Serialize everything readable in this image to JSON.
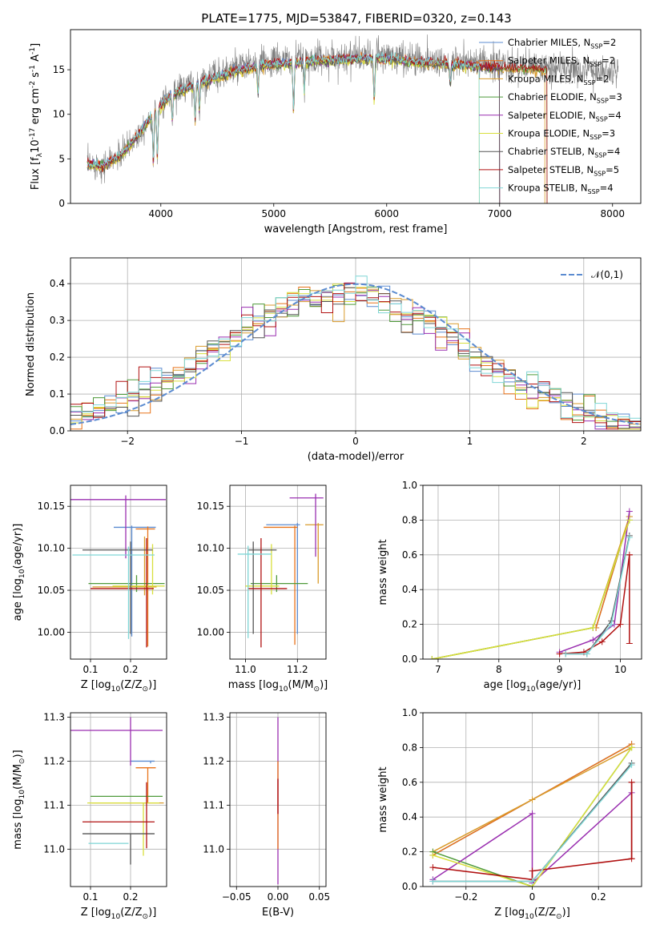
{
  "figure_title": "PLATE=1775, MJD=53847, FIBERID=0320, z=0.143",
  "series_names": [
    "Chabrier MILES, N$_{SSP}$=2",
    "Salpeter MILES, N$_{SSP}$=2",
    "Kroupa MILES, N$_{SSP}$=2",
    "Chabrier ELODIE, N$_{SSP}$=3",
    "Salpeter ELODIE, N$_{SSP}$=4",
    "Kroupa ELODIE, N$_{SSP}$=3",
    "Chabrier STELIB, N$_{SSP}$=4",
    "Salpeter STELIB, N$_{SSP}$=5",
    "Kroupa STELIB, N$_{SSP}$=4"
  ],
  "series_colors": [
    "#5b8bd0",
    "#e8731a",
    "#d99b2b",
    "#4f9a3a",
    "#9a2fb0",
    "#d8df3c",
    "#555555",
    "#b01010",
    "#7fd6d6"
  ],
  "chart_data": [
    {
      "id": "spectrum",
      "type": "line",
      "title": "",
      "xlabel": "wavelength [Angstrom, rest frame]",
      "ylabel": "Flux [f$_\\lambda$10$^{-17}$ erg cm$^{-2}$ s$^{-1}$ A$^{-1}$]",
      "xlim": [
        3200,
        8250
      ],
      "ylim": [
        0,
        19.5
      ],
      "xticks": [
        4000,
        5000,
        6000,
        7000,
        8000
      ],
      "yticks": [
        0,
        5,
        10,
        15
      ],
      "grid": false,
      "legend": "right",
      "data_series": {
        "name": "data",
        "color": "#808080"
      },
      "continuum_knots": {
        "x": [
          3350,
          3500,
          3650,
          3800,
          3950,
          4100,
          4300,
          4500,
          4700,
          4900,
          5100,
          5300,
          5500,
          5700,
          5900,
          6100,
          6300,
          6500,
          6700,
          6900,
          7100,
          7300,
          7500,
          7700,
          7900,
          8050
        ],
        "y": [
          4.5,
          4.3,
          5.5,
          7.8,
          10.5,
          12.5,
          13.5,
          14.5,
          15.2,
          15.8,
          16.0,
          16.2,
          16.4,
          16.5,
          16.6,
          16.4,
          16.1,
          16.0,
          15.8,
          15.6,
          15.4,
          15.3,
          15.1,
          15.0,
          14.8,
          14.6
        ]
      },
      "model_end_wavelength": [
        7000,
        7000,
        7400,
        7420,
        7000,
        6820,
        7000,
        7420,
        6820
      ]
    },
    {
      "id": "residual_hist",
      "type": "step",
      "xlabel": "(data-model)/error",
      "ylabel": "Normed distribution",
      "xlim": [
        -2.5,
        2.5
      ],
      "ylim": [
        0,
        0.47
      ],
      "xticks": [
        -2,
        -1,
        0,
        1,
        2
      ],
      "yticks": [
        0.0,
        0.1,
        0.2,
        0.3,
        0.4
      ],
      "grid": true,
      "legend": "top-right",
      "gaussian": {
        "name": "$\\mathcal{N}(0,1)$",
        "mean": 0,
        "sigma": 1,
        "color": "#5b8bd0"
      },
      "bin_width": 0.1,
      "bin_start": -2.5
    },
    {
      "id": "age_vs_Z",
      "type": "errorbar",
      "xlabel": "Z [log$_{10}$(Z/Z$_\\odot$)]",
      "ylabel": "age  [log$_{10}$(age/yr)]",
      "xlim": [
        0.05,
        0.29
      ],
      "ylim": [
        9.968,
        10.175
      ],
      "xticks": [
        0.1,
        0.2
      ],
      "yticks": [
        10.0,
        10.05,
        10.1,
        10.15
      ],
      "grid": true,
      "points": [
        {
          "x": 0.203,
          "xerr": [
            0.045,
            0.06
          ],
          "y": 10.125,
          "yerr": [
            0.13,
            0.002
          ]
        },
        {
          "x": 0.243,
          "xerr": [
            0.03,
            0.018
          ],
          "y": 10.123,
          "yerr": [
            0.14,
            0.003
          ]
        },
        {
          "x": 0.235,
          "xerr": [
            0.13,
            0.03
          ],
          "y": 10.054,
          "yerr": [
            0.01,
            0.06
          ]
        },
        {
          "x": 0.215,
          "xerr": [
            0.12,
            0.07
          ],
          "y": 10.058,
          "yerr": [
            0.01,
            0.01
          ]
        },
        {
          "x": 0.188,
          "xerr": [
            0.15,
            0.1
          ],
          "y": 10.158,
          "yerr": [
            0.07,
            0.005
          ]
        },
        {
          "x": 0.255,
          "xerr": [
            0.1,
            0.03
          ],
          "y": 10.055,
          "yerr": [
            0.01,
            0.05
          ]
        },
        {
          "x": 0.2,
          "xerr": [
            0.12,
            0.055
          ],
          "y": 10.098,
          "yerr": [
            0.1,
            0.01
          ]
        },
        {
          "x": 0.24,
          "xerr": [
            0.14,
            0.018
          ],
          "y": 10.052,
          "yerr": [
            0.07,
            0.06
          ]
        },
        {
          "x": 0.195,
          "xerr": [
            0.14,
            0.065
          ],
          "y": 10.092,
          "yerr": [
            0.1,
            0.01
          ]
        }
      ]
    },
    {
      "id": "age_vs_mass",
      "type": "errorbar",
      "xlabel": "mass [log$_{10}$(M/M$_\\odot$)]",
      "ylabel": "",
      "xlim": [
        10.94,
        11.31
      ],
      "ylim": [
        9.968,
        10.175
      ],
      "xticks": [
        11.0,
        11.2
      ],
      "yticks": [
        10.0,
        10.05,
        10.1,
        10.15
      ],
      "grid": true,
      "points": [
        {
          "x": 11.2,
          "xerr": [
            0.12,
            0.01
          ],
          "y": 10.128,
          "yerr": [
            0.13,
            0.002
          ]
        },
        {
          "x": 11.19,
          "xerr": [
            0.12,
            0.01
          ],
          "y": 10.125,
          "yerr": [
            0.14,
            0.002
          ]
        },
        {
          "x": 11.28,
          "xerr": [
            0.05,
            0.02
          ],
          "y": 10.128,
          "yerr": [
            0.07,
            0.002
          ]
        },
        {
          "x": 11.12,
          "xerr": [
            0.1,
            0.12
          ],
          "y": 10.058,
          "yerr": [
            0.01,
            0.01
          ]
        },
        {
          "x": 11.27,
          "xerr": [
            0.1,
            0.03
          ],
          "y": 10.16,
          "yerr": [
            0.07,
            0.005
          ]
        },
        {
          "x": 11.1,
          "xerr": [
            0.1,
            0.03
          ],
          "y": 10.055,
          "yerr": [
            0.01,
            0.05
          ]
        },
        {
          "x": 11.03,
          "xerr": [
            0.02,
            0.09
          ],
          "y": 10.098,
          "yerr": [
            0.1,
            0.01
          ]
        },
        {
          "x": 11.06,
          "xerr": [
            0.05,
            0.1
          ],
          "y": 10.052,
          "yerr": [
            0.07,
            0.06
          ]
        },
        {
          "x": 11.01,
          "xerr": [
            0.04,
            0.09
          ],
          "y": 10.093,
          "yerr": [
            0.1,
            0.01
          ]
        }
      ]
    },
    {
      "id": "weight_vs_age",
      "type": "line",
      "xlabel": "age  [log$_{10}$(age/yr)]",
      "ylabel": "mass weight",
      "xlim": [
        6.75,
        10.35
      ],
      "ylim": [
        0,
        1.0
      ],
      "xticks": [
        7,
        8,
        9,
        10
      ],
      "yticks": [
        0.0,
        0.2,
        0.4,
        0.6,
        0.8,
        1.0
      ],
      "grid": true,
      "series": [
        {
          "x": [
            9.6,
            10.15
          ],
          "y": [
            0.18,
            0.82
          ],
          "yerr_top": [
            0.0,
            0.04
          ]
        },
        {
          "x": [
            9.6,
            10.15
          ],
          "y": [
            0.18,
            0.82
          ],
          "yerr_top": [
            0.0,
            0.04
          ]
        },
        {
          "x": [
            6.9,
            9.55,
            10.15
          ],
          "y": [
            0.0,
            0.18,
            0.82
          ],
          "yerr_top": [
            0,
            0,
            0.04
          ]
        },
        {
          "x": [
            6.9,
            9.55,
            10.15
          ],
          "y": [
            0.0,
            0.18,
            0.8
          ],
          "yerr_top": [
            0,
            0,
            0.02
          ]
        },
        {
          "x": [
            9.0,
            9.55,
            9.9,
            10.15
          ],
          "y": [
            0.04,
            0.11,
            0.2,
            0.85
          ],
          "yerr_top": [
            0,
            0,
            0,
            0.04
          ]
        },
        {
          "x": [
            6.9,
            9.55,
            10.15
          ],
          "y": [
            0.0,
            0.18,
            0.8
          ],
          "yerr_top": [
            0,
            0,
            0.02
          ]
        },
        {
          "x": [
            9.1,
            9.45,
            9.85,
            10.15
          ],
          "y": [
            0.03,
            0.03,
            0.22,
            0.71
          ],
          "yerr_top": [
            0,
            0,
            0,
            0.02
          ]
        },
        {
          "x": [
            9.0,
            9.4,
            9.7,
            10.0,
            10.15
          ],
          "y": [
            0.03,
            0.04,
            0.1,
            0.2,
            0.6
          ],
          "yerr_top": [
            0,
            0,
            0,
            0,
            0.0
          ]
        },
        {
          "x": [
            9.1,
            9.45,
            9.85,
            10.15
          ],
          "y": [
            0.03,
            0.03,
            0.2,
            0.7
          ],
          "yerr_top": [
            0,
            0,
            0,
            0.02
          ]
        }
      ]
    },
    {
      "id": "mass_vs_Z",
      "type": "errorbar",
      "xlabel": "Z [log$_{10}$(Z/Z$_\\odot$)]",
      "ylabel": "mass [log$_{10}$(M/M$_\\odot$)]",
      "xlim": [
        0.05,
        0.29
      ],
      "ylim": [
        10.915,
        11.31
      ],
      "xticks": [
        0.1,
        0.2
      ],
      "yticks": [
        11.0,
        11.1,
        11.2,
        11.3
      ],
      "grid": true,
      "points": [
        {
          "x": 0.25,
          "xerr": [
            0.05,
            0.01
          ],
          "y": 11.2,
          "yerr": [
            0.005,
            0.0
          ]
        },
        {
          "x": 0.243,
          "xerr": [
            0.03,
            0.02
          ],
          "y": 11.185,
          "yerr": [
            0.08,
            0.0
          ]
        },
        {
          "x": 0.243,
          "xerr": [
            0.14,
            0.04
          ],
          "y": 11.105,
          "yerr": [
            0.0,
            0.0
          ]
        },
        {
          "x": 0.2,
          "xerr": [
            0.1,
            0.08
          ],
          "y": 11.12,
          "yerr": [
            0.0,
            0.0
          ]
        },
        {
          "x": 0.2,
          "xerr": [
            0.15,
            0.08
          ],
          "y": 11.27,
          "yerr": [
            0.08,
            0.03
          ]
        },
        {
          "x": 0.232,
          "xerr": [
            0.14,
            0.04
          ],
          "y": 11.105,
          "yerr": [
            0.12,
            0.0
          ]
        },
        {
          "x": 0.2,
          "xerr": [
            0.12,
            0.06
          ],
          "y": 11.035,
          "yerr": [
            0.07,
            0.0
          ]
        },
        {
          "x": 0.24,
          "xerr": [
            0.16,
            0.02
          ],
          "y": 11.062,
          "yerr": [
            0.06,
            0.09
          ]
        },
        {
          "x": 0.195,
          "xerr": [
            0.1,
            0.0
          ],
          "y": 11.013,
          "yerr": [
            0.0,
            0.0
          ]
        }
      ]
    },
    {
      "id": "mass_vs_EBV",
      "type": "errorbar",
      "xlabel": "E(B-V)",
      "ylabel": "",
      "xlim": [
        -0.058,
        0.058
      ],
      "ylim": [
        10.915,
        11.31
      ],
      "xticks": [
        -0.05,
        0.0,
        0.05
      ],
      "yticks": [
        11.0,
        11.1,
        11.2,
        11.3
      ],
      "grid": true,
      "points": [
        {
          "x": 0.0,
          "xerr": [
            0,
            0
          ],
          "y": 11.3,
          "yerr": [
            0.38,
            0.0
          ]
        },
        {
          "x": 0.0,
          "xerr": [
            0,
            0
          ],
          "y": 11.2,
          "yerr": [
            0.2,
            0.0
          ]
        },
        {
          "x": 0.0,
          "xerr": [
            0,
            0
          ],
          "y": 11.16,
          "yerr": [
            0.08,
            0.0
          ]
        }
      ]
    },
    {
      "id": "weight_vs_Z",
      "type": "line",
      "xlabel": "Z [log$_{10}$(Z/Z$_\\odot$)]",
      "ylabel": "mass weight",
      "xlim": [
        -0.33,
        0.33
      ],
      "ylim": [
        0,
        1.0
      ],
      "xticks": [
        -0.2,
        0.0,
        0.2
      ],
      "yticks": [
        0.0,
        0.2,
        0.4,
        0.6,
        0.8,
        1.0
      ],
      "grid": true,
      "series": [
        {
          "x": [
            -0.3,
            0.0,
            0.3
          ],
          "y": [
            0.18,
            0.5,
            0.82
          ]
        },
        {
          "x": [
            -0.3,
            0.0,
            0.3
          ],
          "y": [
            0.18,
            0.5,
            0.82
          ]
        },
        {
          "x": [
            -0.3,
            0.0,
            0.3
          ],
          "y": [
            0.2,
            0.5,
            0.8
          ]
        },
        {
          "x": [
            -0.3,
            0.0,
            0.3
          ],
          "y": [
            0.2,
            0.0,
            0.8
          ]
        },
        {
          "x": [
            -0.3,
            -0.3,
            0.0,
            0.0,
            0.3
          ],
          "y": [
            0.03,
            0.04,
            0.42,
            0.02,
            0.54
          ]
        },
        {
          "x": [
            -0.3,
            0.0,
            0.3
          ],
          "y": [
            0.18,
            0.0,
            0.8
          ]
        },
        {
          "x": [
            -0.3,
            0.0,
            0.3
          ],
          "y": [
            0.03,
            0.03,
            0.71
          ]
        },
        {
          "x": [
            -0.3,
            0.0,
            0.0,
            0.3,
            0.3
          ],
          "y": [
            0.11,
            0.04,
            0.09,
            0.16,
            0.6
          ]
        },
        {
          "x": [
            -0.3,
            0.0,
            0.3
          ],
          "y": [
            0.03,
            0.03,
            0.7
          ]
        }
      ]
    }
  ]
}
